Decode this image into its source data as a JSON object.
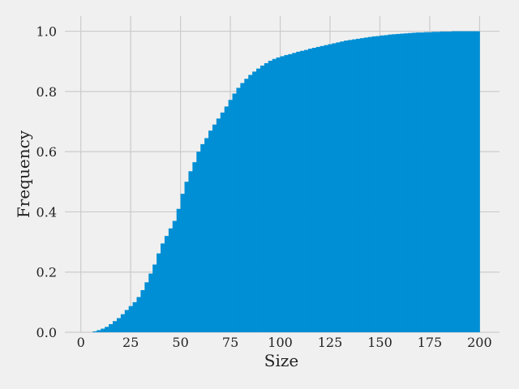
{
  "chart_data": {
    "type": "bar",
    "histtype": "cumulative-histogram",
    "xlabel": "Size",
    "ylabel": "Frequency",
    "xlim": [
      -8,
      210
    ],
    "ylim": [
      0,
      1.05
    ],
    "x_ticks": [
      0,
      25,
      50,
      75,
      100,
      125,
      150,
      175,
      200
    ],
    "y_ticks": [
      0.0,
      0.2,
      0.4,
      0.6,
      0.8,
      1.0
    ],
    "x_tick_labels": [
      "0",
      "25",
      "50",
      "75",
      "100",
      "125",
      "150",
      "175",
      "200"
    ],
    "y_tick_labels": [
      "0.0",
      "0.2",
      "0.4",
      "0.6",
      "0.8",
      "1.0"
    ],
    "bin_width": 2,
    "x": [
      6,
      8,
      10,
      12,
      14,
      16,
      18,
      20,
      22,
      24,
      26,
      28,
      30,
      32,
      34,
      36,
      38,
      40,
      42,
      44,
      46,
      48,
      50,
      52,
      54,
      56,
      58,
      60,
      62,
      64,
      66,
      68,
      70,
      72,
      74,
      76,
      78,
      80,
      82,
      84,
      86,
      88,
      90,
      92,
      94,
      96,
      98,
      100,
      102,
      104,
      106,
      108,
      110,
      112,
      114,
      116,
      118,
      120,
      122,
      124,
      126,
      128,
      130,
      132,
      134,
      136,
      138,
      140,
      142,
      144,
      146,
      148,
      150,
      152,
      154,
      156,
      158,
      160,
      162,
      164,
      166,
      168,
      170,
      172,
      174,
      176,
      178,
      180,
      182,
      184,
      186,
      188,
      190,
      192,
      194,
      196,
      198
    ],
    "values": [
      0.003,
      0.007,
      0.012,
      0.018,
      0.027,
      0.037,
      0.047,
      0.06,
      0.074,
      0.087,
      0.1,
      0.117,
      0.14,
      0.166,
      0.195,
      0.225,
      0.262,
      0.295,
      0.32,
      0.345,
      0.37,
      0.41,
      0.46,
      0.5,
      0.535,
      0.565,
      0.6,
      0.625,
      0.645,
      0.67,
      0.69,
      0.71,
      0.73,
      0.75,
      0.772,
      0.793,
      0.812,
      0.828,
      0.842,
      0.855,
      0.866,
      0.876,
      0.886,
      0.894,
      0.902,
      0.908,
      0.913,
      0.917,
      0.921,
      0.924,
      0.928,
      0.932,
      0.935,
      0.938,
      0.942,
      0.945,
      0.948,
      0.951,
      0.954,
      0.957,
      0.96,
      0.963,
      0.966,
      0.969,
      0.971,
      0.973,
      0.975,
      0.977,
      0.979,
      0.981,
      0.983,
      0.984,
      0.986,
      0.987,
      0.989,
      0.99,
      0.991,
      0.992,
      0.993,
      0.994,
      0.995,
      0.996,
      0.996,
      0.997,
      0.997,
      0.998,
      0.998,
      0.999,
      0.999,
      0.999,
      1.0,
      1.0,
      1.0,
      1.0,
      1.0,
      1.0,
      1.0
    ],
    "bar_color": "#008fd5",
    "grid": true,
    "grid_color": "#cbcbcb",
    "background_color": "#f0f0f0"
  }
}
